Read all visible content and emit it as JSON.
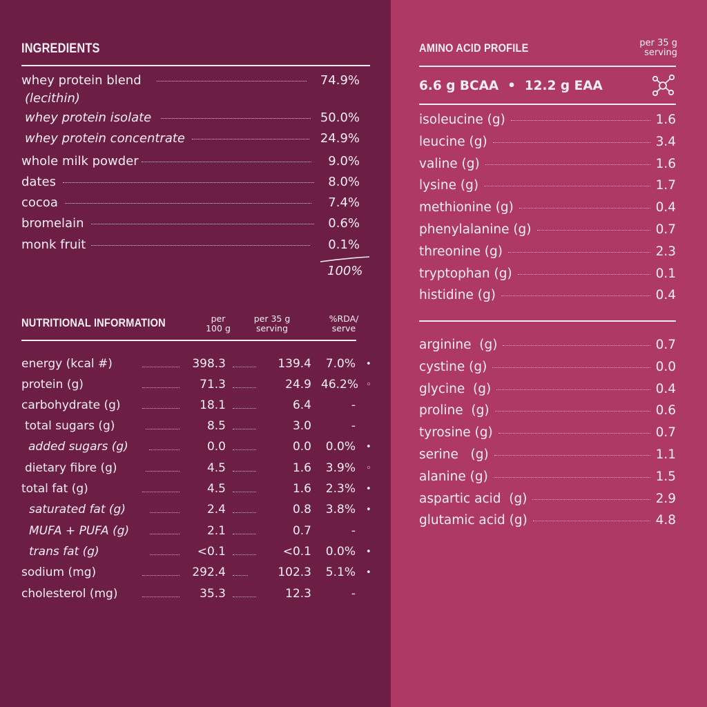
{
  "ingredients": {
    "title": "INGREDIENTS",
    "items": [
      {
        "name": "whey protein blend",
        "value": "74.9%"
      },
      {
        "name": "(lecithin)",
        "value": ""
      },
      {
        "name": "whey protein isolate",
        "value": "50.0%"
      },
      {
        "name": "whey protein concentrate",
        "value": "24.9%"
      },
      {
        "name": "whole milk powder",
        "value": "9.0%"
      },
      {
        "name": "dates",
        "value": "8.0%"
      },
      {
        "name": "cocoa",
        "value": "7.4%"
      },
      {
        "name": "bromelain",
        "value": "0.6%"
      },
      {
        "name": "monk fruit",
        "value": "0.1%"
      }
    ],
    "total": "100%"
  },
  "nutrition": {
    "title": "NUTRITIONAL INFORMATION",
    "col1": [
      "per",
      "100 g"
    ],
    "col2": [
      "per 35 g",
      "serving"
    ],
    "col3": [
      "%RDA/",
      "serve"
    ],
    "rows": [
      {
        "name": "energy (kcal #)",
        "v1": "398.3",
        "v2": "139.4",
        "v3": "7.0%",
        "mark": "•"
      },
      {
        "name": "protein (g)",
        "v1": "71.3",
        "v2": "24.9",
        "v3": "46.2%",
        "mark": "◦"
      },
      {
        "name": "carbohydrate (g)",
        "v1": "18.1",
        "v2": "6.4",
        "v3": "-",
        "mark": ""
      },
      {
        "name": "total sugars (g)",
        "v1": "8.5",
        "v2": "3.0",
        "v3": "-",
        "mark": ""
      },
      {
        "name": "added sugars (g)",
        "v1": "0.0",
        "v2": "0.0",
        "v3": "0.0%",
        "mark": "•"
      },
      {
        "name": "dietary fibre (g)",
        "v1": "4.5",
        "v2": "1.6",
        "v3": "3.9%",
        "mark": "◦"
      },
      {
        "name": "total fat (g)",
        "v1": "4.5",
        "v2": "1.6",
        "v3": "2.3%",
        "mark": "•"
      },
      {
        "name": "saturated fat (g)",
        "v1": "2.4",
        "v2": "0.8",
        "v3": "3.8%",
        "mark": "•"
      },
      {
        "name": "MUFA + PUFA (g)",
        "v1": "2.1",
        "v2": "0.7",
        "v3": "-",
        "mark": ""
      },
      {
        "name": "trans fat (g)",
        "v1": "<0.1",
        "v2": "<0.1",
        "v3": "0.0%",
        "mark": "•"
      },
      {
        "name": "sodium (mg)",
        "v1": "292.4",
        "v2": "102.3",
        "v3": "5.1%",
        "mark": "•"
      },
      {
        "name": "cholesterol (mg)",
        "v1": "35.3",
        "v2": "12.3",
        "v3": "-",
        "mark": ""
      }
    ]
  },
  "amino": {
    "title": "AMINO ACID PROFILE",
    "per": [
      "per 35 g",
      "serving"
    ],
    "summary": "6.6 g BCAA  •  12.2 g EAA",
    "icon": "molecule-icon",
    "essential": [
      {
        "name": "isoleucine (g)",
        "value": "1.6"
      },
      {
        "name": "leucine (g)",
        "value": "3.4"
      },
      {
        "name": "valine (g)",
        "value": "1.6"
      },
      {
        "name": "lysine (g)",
        "value": "1.7"
      },
      {
        "name": "methionine (g)",
        "value": "0.4"
      },
      {
        "name": "phenylalanine (g)",
        "value": "0.7"
      },
      {
        "name": "threonine (g)",
        "value": "2.3"
      },
      {
        "name": "tryptophan (g)",
        "value": "0.1"
      },
      {
        "name": "histidine (g)",
        "value": "0.4"
      }
    ],
    "nonessential": [
      {
        "name": "arginine  (g)",
        "value": "0.7"
      },
      {
        "name": "cystine (g)",
        "value": "0.0"
      },
      {
        "name": "glycine  (g)",
        "value": "0.4"
      },
      {
        "name": "proline  (g)",
        "value": "0.6"
      },
      {
        "name": "tyrosine (g)",
        "value": "0.7"
      },
      {
        "name": "serine   (g)",
        "value": "1.1"
      },
      {
        "name": "alanine (g)",
        "value": "1.5"
      },
      {
        "name": "aspartic acid  (g)",
        "value": "2.9"
      },
      {
        "name": "glutamic acid (g)",
        "value": "4.8"
      }
    ]
  },
  "colors": {
    "left_panel": "#6d1e44",
    "right_panel": "#ad3964",
    "text": "#f7eef2"
  }
}
